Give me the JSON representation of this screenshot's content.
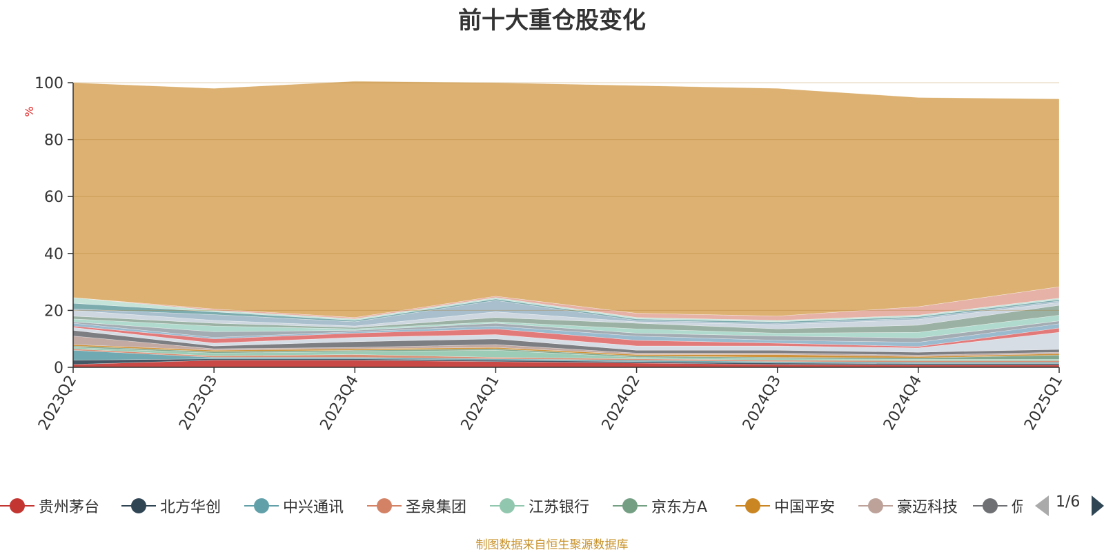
{
  "chart_data": {
    "type": "area",
    "title": "前十大重仓股变化",
    "ylabel": "%",
    "ylim": [
      0,
      100
    ],
    "yticks": [
      0,
      20,
      40,
      60,
      80,
      100
    ],
    "categories": [
      "2023Q2",
      "2023Q3",
      "2023Q4",
      "2024Q1",
      "2024Q2",
      "2024Q3",
      "2024Q4",
      "2025Q1"
    ],
    "stacked": true,
    "grid": true,
    "legend_position": "bottom",
    "series": [
      {
        "name": "贵州茅台",
        "color": "#c23531",
        "values": [
          1.0,
          2.5,
          2.5,
          2.0,
          1.5,
          1.0,
          0.8,
          0.8
        ]
      },
      {
        "name": "北方华创",
        "color": "#2f4554",
        "values": [
          1.5,
          0.5,
          0.5,
          0.5,
          0.5,
          0.5,
          0.5,
          0.5
        ]
      },
      {
        "name": "中兴通讯",
        "color": "#61a0a8",
        "values": [
          3.5,
          0.5,
          0.5,
          0.5,
          0.5,
          0.5,
          0.5,
          0.5
        ]
      },
      {
        "name": "圣泉集团",
        "color": "#d48265",
        "values": [
          0.5,
          0.5,
          1.0,
          0.5,
          0.5,
          0.5,
          0.5,
          0.5
        ]
      },
      {
        "name": "江苏银行",
        "color": "#91c7ae",
        "values": [
          0.5,
          1.0,
          1.0,
          2.5,
          0.5,
          0.5,
          0.5,
          0.5
        ]
      },
      {
        "name": "京东方A",
        "color": "#749f83",
        "values": [
          0.5,
          0.5,
          0.5,
          0.5,
          0.5,
          0.5,
          0.5,
          1.5
        ]
      },
      {
        "name": "中国平安",
        "color": "#ca8622",
        "values": [
          0.5,
          0.5,
          0.5,
          0.5,
          0.5,
          1.0,
          0.5,
          0.5
        ]
      },
      {
        "name": "豪迈科技",
        "color": "#bda29a",
        "values": [
          3.0,
          0.5,
          0.5,
          1.0,
          0.5,
          0.5,
          0.5,
          0.5
        ]
      },
      {
        "name": "",
        "color": "#6e7074",
        "values": [
          2.0,
          1.0,
          2.0,
          2.0,
          1.0,
          1.0,
          1.0,
          1.0
        ]
      },
      {
        "name": "",
        "color": "#d3d9e2",
        "values": [
          1.0,
          1.0,
          1.5,
          1.5,
          1.5,
          1.5,
          1.5,
          6.0
        ]
      },
      {
        "name": "",
        "color": "#e06c6c",
        "values": [
          0.5,
          1.5,
          1.5,
          2.0,
          2.0,
          1.0,
          0.5,
          1.5
        ]
      },
      {
        "name": "",
        "color": "#8fb3c9",
        "values": [
          1.0,
          0.5,
          0.5,
          1.0,
          1.5,
          1.0,
          1.5,
          1.5
        ]
      },
      {
        "name": "",
        "color": "#9aa3ab",
        "values": [
          0.5,
          2.0,
          0.5,
          1.0,
          1.0,
          1.5,
          1.5,
          1.0
        ]
      },
      {
        "name": "",
        "color": "#a7d6c8",
        "values": [
          1.0,
          2.0,
          0.5,
          0.5,
          1.5,
          1.0,
          2.0,
          2.0
        ]
      },
      {
        "name": "",
        "color": "#8fa89a",
        "values": [
          1.0,
          1.0,
          0.5,
          1.5,
          2.0,
          1.5,
          2.5,
          3.5
        ]
      },
      {
        "name": "",
        "color": "#c9d3dc",
        "values": [
          2.0,
          1.0,
          0.5,
          2.0,
          0.5,
          1.5,
          2.0,
          1.0
        ]
      },
      {
        "name": "",
        "color": "#a0b8c8",
        "values": [
          0.5,
          2.0,
          1.5,
          4.0,
          0.5,
          0.5,
          0.5,
          0.5
        ]
      },
      {
        "name": "",
        "color": "#6fa3a6",
        "values": [
          2.0,
          1.0,
          0.5,
          0.5,
          0.5,
          0.5,
          0.5,
          0.5
        ]
      },
      {
        "name": "",
        "color": "#bfe0d5",
        "values": [
          2.0,
          0.5,
          0.5,
          0.5,
          0.5,
          0.5,
          0.5,
          0.5
        ]
      },
      {
        "name": "",
        "color": "#e3a89c",
        "values": [
          0.0,
          0.5,
          0.5,
          0.5,
          1.5,
          1.5,
          3.0,
          4.0
        ]
      },
      {
        "name": "",
        "color": "#d8a862",
        "values": [
          75.5,
          77.5,
          83.0,
          75.0,
          80.0,
          80.0,
          73.5,
          66.0
        ]
      }
    ]
  },
  "legend": {
    "items": [
      "贵州茅台",
      "北方华创",
      "中兴通讯",
      "圣泉集团",
      "江苏银行",
      "京东方A",
      "中国平安",
      "豪迈科技",
      "侃"
    ],
    "colors": [
      "#c23531",
      "#2f4554",
      "#61a0a8",
      "#d48265",
      "#91c7ae",
      "#749f83",
      "#ca8622",
      "#bda29a",
      "#6e7074"
    ],
    "page": "1/6"
  },
  "footnote": "制图数据来自恒生聚源数据库"
}
